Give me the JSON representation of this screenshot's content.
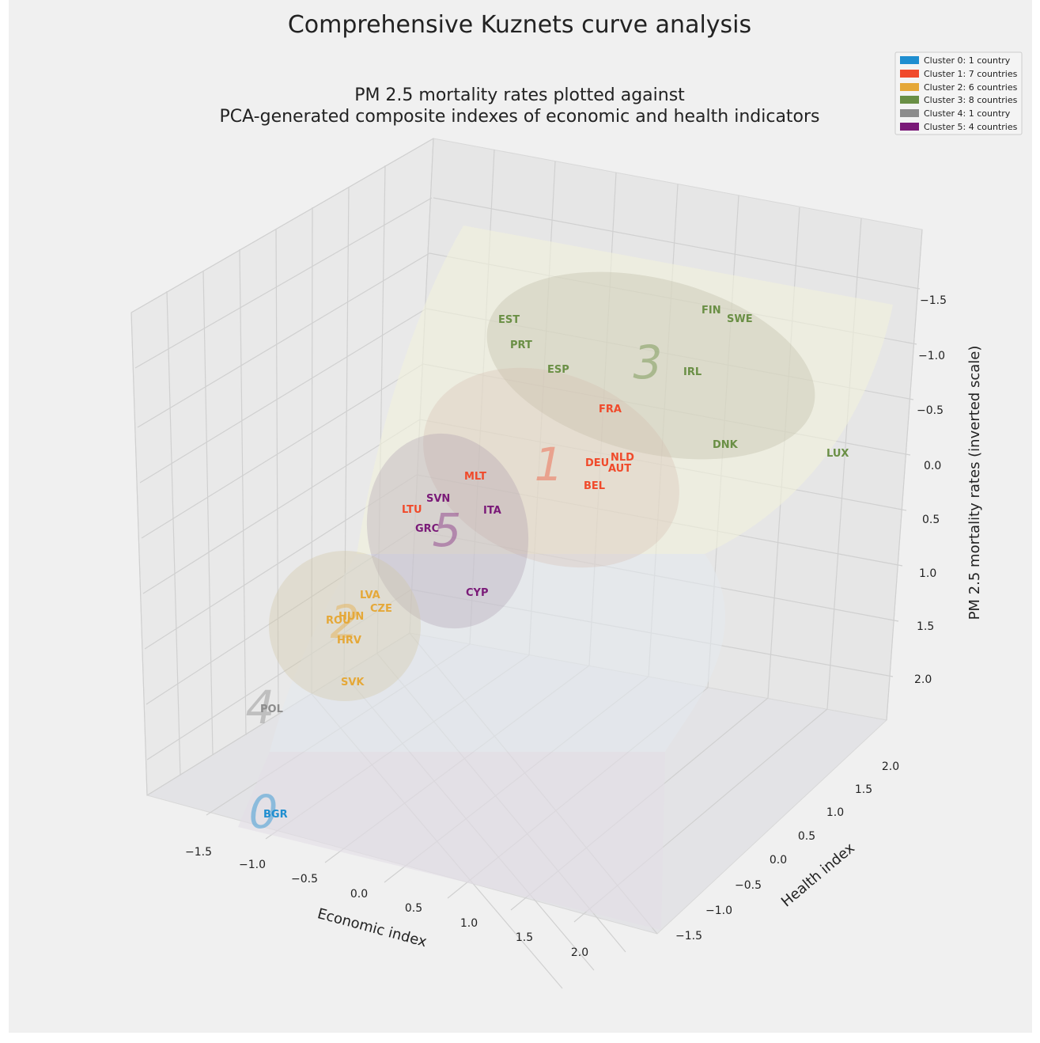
{
  "chart_data": {
    "type": "scatter",
    "title": "Comprehensive Kuznets curve analysis",
    "subtitle_lines": [
      "PM 2.5 mortality rates plotted against",
      "PCA-generated composite indexes of economic and health indicators"
    ],
    "xlabel": "Economic index",
    "ylabel": "Health index",
    "zlabel": "PM 2.5 mortality rates (inverted scale)",
    "x_ticks": [
      "−1.5",
      "−1.0",
      "−0.5",
      "0.0",
      "0.5",
      "1.0",
      "1.5",
      "2.0"
    ],
    "y_ticks": [
      "−1.5",
      "−1.0",
      "−0.5",
      "0.0",
      "0.5",
      "1.0",
      "1.5",
      "2.0"
    ],
    "z_ticks": [
      "−1.5",
      "−1.0",
      "−0.5",
      "0.0",
      "0.5",
      "1.0",
      "1.5",
      "2.0"
    ],
    "legend_position": "top-right",
    "clusters": [
      {
        "id": "0",
        "label": "Cluster 0: 1 country",
        "color": "#1f8ed0"
      },
      {
        "id": "1",
        "label": "Cluster 1: 7 countries",
        "color": "#f04a2b"
      },
      {
        "id": "2",
        "label": "Cluster 2: 6 countries",
        "color": "#e5a838"
      },
      {
        "id": "3",
        "label": "Cluster 3: 8 countries",
        "color": "#6a8f45"
      },
      {
        "id": "4",
        "label": "Cluster 4: 1 country",
        "color": "#8c8c8c"
      },
      {
        "id": "5",
        "label": "Cluster 5: 4 countries",
        "color": "#7a1a78"
      }
    ],
    "countries": [
      {
        "name": "BGR",
        "cluster": 0
      },
      {
        "name": "FRA",
        "cluster": 1
      },
      {
        "name": "DEU",
        "cluster": 1
      },
      {
        "name": "NLD",
        "cluster": 1
      },
      {
        "name": "AUT",
        "cluster": 1
      },
      {
        "name": "BEL",
        "cluster": 1
      },
      {
        "name": "MLT",
        "cluster": 1
      },
      {
        "name": "LTU",
        "cluster": 1
      },
      {
        "name": "LVA",
        "cluster": 2
      },
      {
        "name": "CZE",
        "cluster": 2
      },
      {
        "name": "HUN",
        "cluster": 2
      },
      {
        "name": "ROU",
        "cluster": 2
      },
      {
        "name": "HRV",
        "cluster": 2
      },
      {
        "name": "SVK",
        "cluster": 2
      },
      {
        "name": "EST",
        "cluster": 3
      },
      {
        "name": "PRT",
        "cluster": 3
      },
      {
        "name": "ESP",
        "cluster": 3
      },
      {
        "name": "FIN",
        "cluster": 3
      },
      {
        "name": "SWE",
        "cluster": 3
      },
      {
        "name": "IRL",
        "cluster": 3
      },
      {
        "name": "DNK",
        "cluster": 3
      },
      {
        "name": "LUX",
        "cluster": 3
      },
      {
        "name": "POL",
        "cluster": 4
      },
      {
        "name": "SVN",
        "cluster": 5
      },
      {
        "name": "ITA",
        "cluster": 5
      },
      {
        "name": "GRC",
        "cluster": 5
      },
      {
        "name": "CYP",
        "cluster": 5
      }
    ]
  }
}
